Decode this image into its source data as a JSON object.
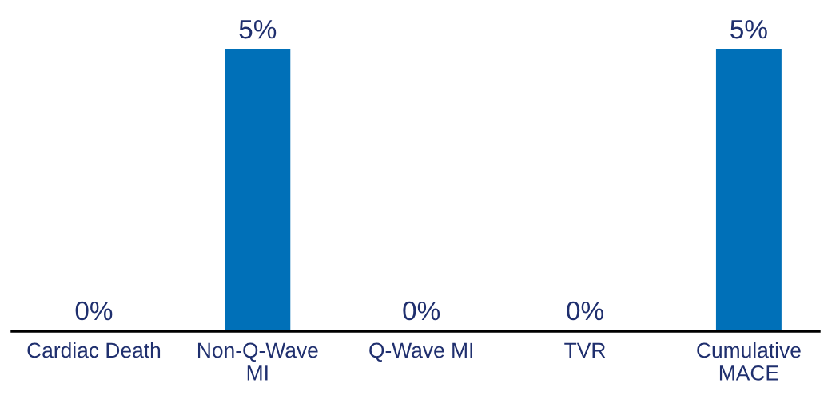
{
  "chart_data": {
    "type": "bar",
    "categories": [
      "Cardiac Death",
      "Non-Q-Wave\nMI",
      "Q-Wave MI",
      "TVR",
      "Cumulative\nMACE"
    ],
    "values": [
      0,
      5,
      0,
      0,
      5
    ],
    "value_labels": [
      "0%",
      "5%",
      "0%",
      "0%",
      "5%"
    ],
    "color": "#0070b8",
    "grid": false,
    "legend": false
  }
}
